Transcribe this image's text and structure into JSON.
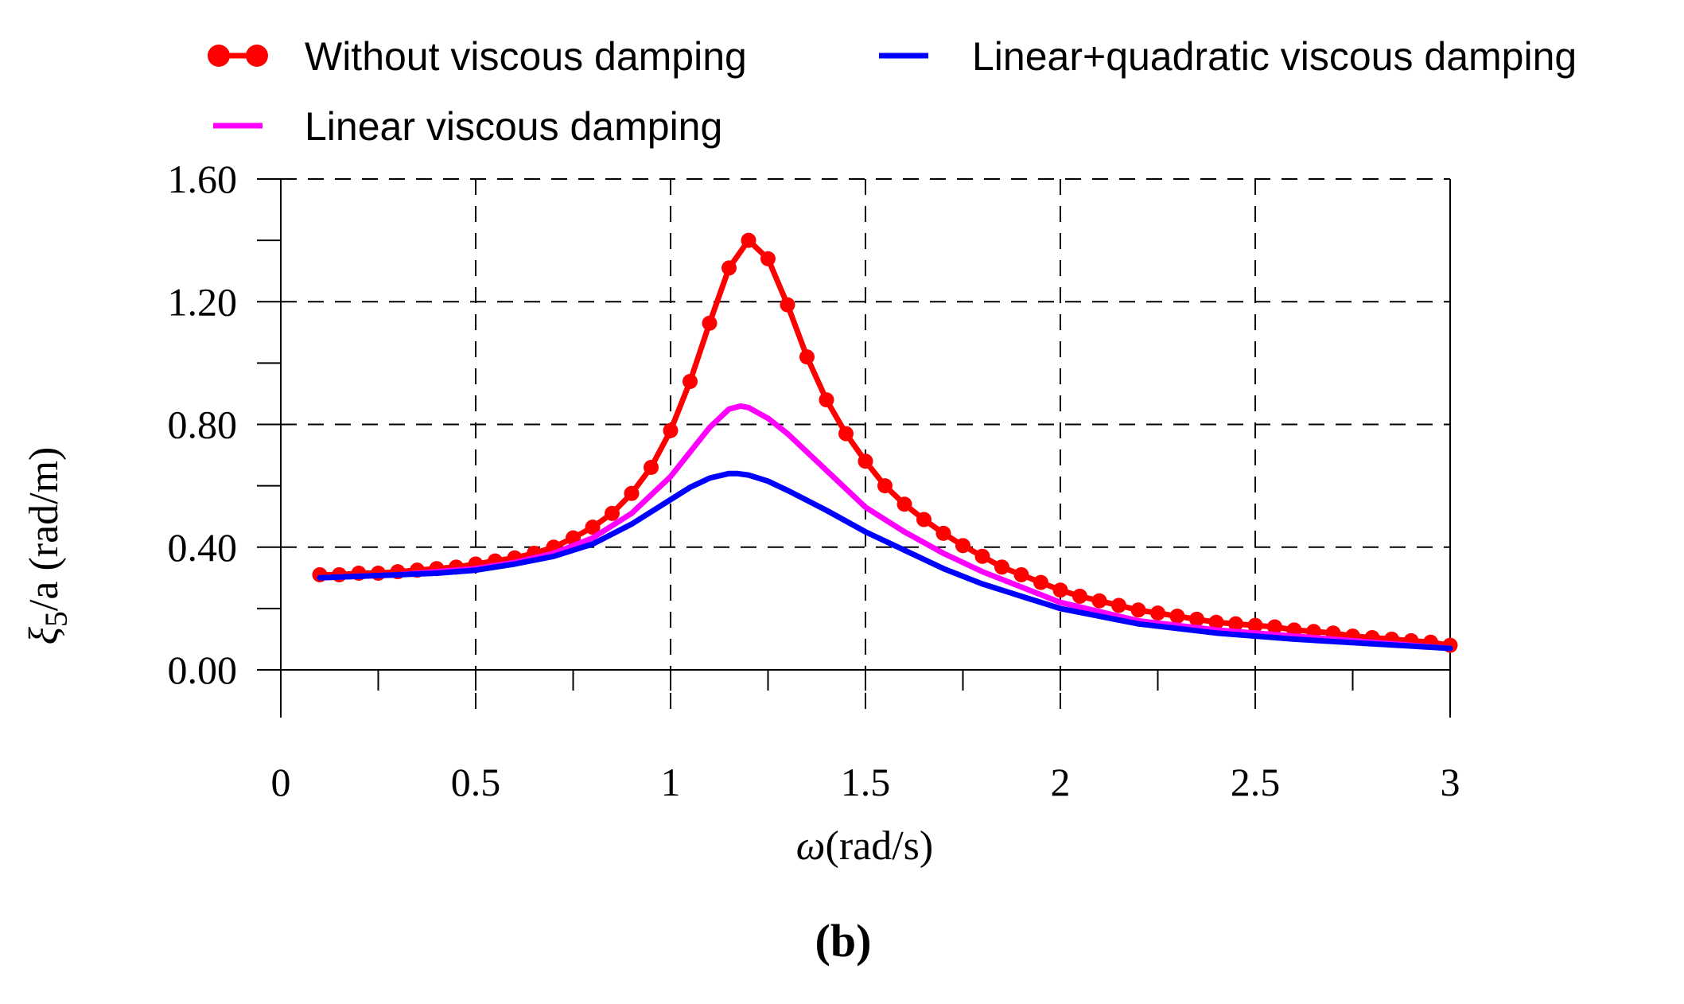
{
  "chart_data": {
    "type": "line",
    "panel_label": "(b)",
    "xlabel_symbol": "ω",
    "xlabel_unit": "(rad/s)",
    "ylabel_symbol": "ξ",
    "ylabel_subscript": "5",
    "ylabel_unit": "/a (rad/m)",
    "xlim": [
      0,
      3
    ],
    "ylim": [
      0,
      1.6
    ],
    "x_ticks": [
      {
        "value": 0,
        "label": "0"
      },
      {
        "value": 0.5,
        "label": "0.5"
      },
      {
        "value": 1,
        "label": "1"
      },
      {
        "value": 1.5,
        "label": "1.5"
      },
      {
        "value": 2,
        "label": "2"
      },
      {
        "value": 2.5,
        "label": "2.5"
      },
      {
        "value": 3,
        "label": "3"
      }
    ],
    "y_ticks": [
      {
        "value": 0,
        "label": "0.00"
      },
      {
        "value": 0.4,
        "label": "0.40"
      },
      {
        "value": 0.8,
        "label": "0.80"
      },
      {
        "value": 1.2,
        "label": "1.20"
      },
      {
        "value": 1.6,
        "label": "1.60"
      }
    ],
    "grid": "dashed",
    "legend_position": "top",
    "series": [
      {
        "name": "Without viscous damping",
        "color": "#ff0000",
        "marker": "circle",
        "x": [
          0.1,
          0.15,
          0.2,
          0.25,
          0.3,
          0.35,
          0.4,
          0.45,
          0.5,
          0.55,
          0.6,
          0.65,
          0.7,
          0.75,
          0.8,
          0.85,
          0.9,
          0.95,
          1.0,
          1.05,
          1.1,
          1.15,
          1.2,
          1.25,
          1.3,
          1.35,
          1.4,
          1.45,
          1.5,
          1.55,
          1.6,
          1.65,
          1.7,
          1.75,
          1.8,
          1.85,
          1.9,
          1.95,
          2.0,
          2.05,
          2.1,
          2.15,
          2.2,
          2.25,
          2.3,
          2.35,
          2.4,
          2.45,
          2.5,
          2.55,
          2.6,
          2.65,
          2.7,
          2.75,
          2.8,
          2.85,
          2.9,
          2.95,
          3.0
        ],
        "values": [
          0.31,
          0.31,
          0.315,
          0.315,
          0.32,
          0.325,
          0.33,
          0.335,
          0.345,
          0.355,
          0.365,
          0.38,
          0.4,
          0.43,
          0.465,
          0.51,
          0.575,
          0.66,
          0.78,
          0.94,
          1.13,
          1.31,
          1.4,
          1.34,
          1.19,
          1.02,
          0.88,
          0.77,
          0.68,
          0.6,
          0.54,
          0.49,
          0.445,
          0.405,
          0.37,
          0.335,
          0.31,
          0.285,
          0.26,
          0.24,
          0.225,
          0.21,
          0.195,
          0.185,
          0.175,
          0.165,
          0.155,
          0.15,
          0.145,
          0.14,
          0.13,
          0.125,
          0.12,
          0.11,
          0.105,
          0.1,
          0.095,
          0.09,
          0.08
        ]
      },
      {
        "name": "Linear viscous damping",
        "color": "#ff00ff",
        "marker": "none",
        "x": [
          0.1,
          0.2,
          0.3,
          0.4,
          0.5,
          0.6,
          0.7,
          0.8,
          0.9,
          1.0,
          1.05,
          1.1,
          1.15,
          1.18,
          1.2,
          1.25,
          1.3,
          1.4,
          1.5,
          1.6,
          1.7,
          1.8,
          1.9,
          2.0,
          2.2,
          2.4,
          2.6,
          2.8,
          3.0
        ],
        "values": [
          0.3,
          0.305,
          0.31,
          0.32,
          0.33,
          0.35,
          0.38,
          0.43,
          0.51,
          0.63,
          0.71,
          0.79,
          0.85,
          0.86,
          0.855,
          0.82,
          0.77,
          0.65,
          0.53,
          0.45,
          0.38,
          0.32,
          0.27,
          0.22,
          0.16,
          0.13,
          0.11,
          0.09,
          0.07
        ]
      },
      {
        "name": "Linear+quadratic viscous damping",
        "color": "#0000ff",
        "marker": "none",
        "x": [
          0.1,
          0.2,
          0.3,
          0.4,
          0.5,
          0.6,
          0.7,
          0.8,
          0.9,
          1.0,
          1.05,
          1.1,
          1.15,
          1.17,
          1.2,
          1.25,
          1.3,
          1.4,
          1.5,
          1.6,
          1.7,
          1.8,
          1.9,
          2.0,
          2.2,
          2.4,
          2.6,
          2.8,
          3.0
        ],
        "values": [
          0.3,
          0.305,
          0.31,
          0.315,
          0.325,
          0.345,
          0.37,
          0.41,
          0.475,
          0.555,
          0.595,
          0.625,
          0.64,
          0.64,
          0.635,
          0.615,
          0.585,
          0.52,
          0.45,
          0.39,
          0.33,
          0.28,
          0.24,
          0.2,
          0.15,
          0.12,
          0.1,
          0.085,
          0.07
        ]
      }
    ]
  }
}
